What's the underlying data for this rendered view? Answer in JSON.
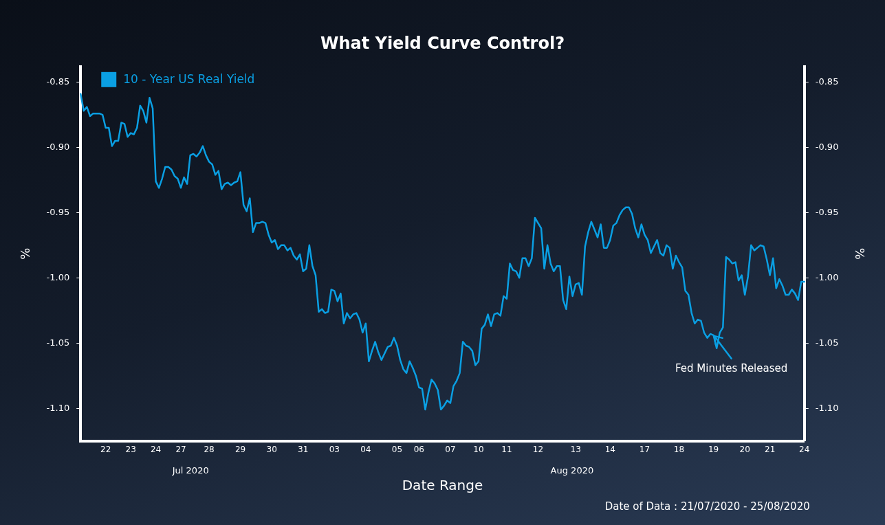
{
  "chart_data": {
    "type": "line",
    "title": "What Yield Curve Control?",
    "xlabel": "Date Range",
    "ylabel": "%",
    "y2label": "%",
    "categories": [
      null,
      null,
      null,
      null,
      null,
      null,
      null,
      null,
      "22",
      null,
      null,
      null,
      null,
      null,
      null,
      null,
      "23",
      null,
      null,
      null,
      null,
      null,
      null,
      null,
      "24",
      null,
      null,
      null,
      null,
      null,
      null,
      null,
      "27",
      null,
      null,
      null,
      null,
      null,
      null,
      null,
      null,
      "28",
      null,
      null,
      null,
      null,
      null,
      null,
      null,
      null,
      null,
      "29",
      null,
      null,
      null,
      null,
      null,
      null,
      null,
      null,
      null,
      "30",
      null,
      null,
      null,
      null,
      null,
      null,
      null,
      null,
      null,
      "31",
      null,
      null,
      null,
      null,
      null,
      null,
      null,
      null,
      null,
      "03",
      null,
      null,
      null,
      null,
      null,
      null,
      null,
      null,
      null,
      "04",
      null,
      null,
      null,
      null,
      null,
      null,
      null,
      null,
      null,
      "05",
      null,
      null,
      null,
      null,
      null,
      null,
      "06",
      null,
      null,
      null,
      null,
      null,
      null,
      null,
      null,
      null,
      "07",
      null,
      null,
      null,
      null,
      null,
      null,
      null,
      null,
      "10",
      null,
      null,
      null,
      null,
      null,
      null,
      null,
      null,
      "11",
      null,
      null,
      null,
      null,
      null,
      null,
      null,
      null,
      null,
      "12",
      null,
      null,
      null,
      null,
      null,
      null,
      null,
      null,
      null,
      null,
      null,
      "13",
      null,
      null,
      null,
      null,
      null,
      null,
      null,
      null,
      null,
      null,
      "14",
      null,
      null,
      null,
      null,
      null,
      null,
      null,
      null,
      null,
      null,
      "17",
      null,
      null,
      null,
      null,
      null,
      null,
      null,
      null,
      null,
      null,
      "18",
      null,
      null,
      null,
      null,
      null,
      null,
      null,
      null,
      null,
      null,
      "19",
      null,
      null,
      null,
      null,
      null,
      null,
      null,
      null,
      null,
      "20",
      null,
      null,
      null,
      null,
      null,
      null,
      null,
      "21",
      null,
      null,
      null,
      null,
      null,
      null,
      null,
      null,
      null,
      null,
      "24"
    ],
    "series": [
      {
        "name": "10 - Year US Real Yield",
        "color": "#0a9fe3",
        "values": [
          -0.859,
          -0.872,
          -0.869,
          -0.876,
          -0.874,
          -0.874,
          -0.874,
          -0.875,
          -0.885,
          -0.885,
          -0.899,
          -0.895,
          -0.895,
          -0.881,
          -0.882,
          -0.892,
          -0.889,
          -0.89,
          -0.885,
          -0.868,
          -0.872,
          -0.881,
          -0.862,
          -0.87,
          -0.926,
          -0.931,
          -0.924,
          -0.915,
          -0.915,
          -0.917,
          -0.922,
          -0.924,
          -0.931,
          -0.923,
          -0.928,
          -0.906,
          -0.905,
          -0.907,
          -0.904,
          -0.899,
          -0.906,
          -0.911,
          -0.913,
          -0.921,
          -0.918,
          -0.932,
          -0.928,
          -0.927,
          -0.929,
          -0.927,
          -0.926,
          -0.919,
          -0.944,
          -0.949,
          -0.939,
          -0.965,
          -0.958,
          -0.958,
          -0.957,
          -0.958,
          -0.967,
          -0.973,
          -0.971,
          -0.978,
          -0.975,
          -0.975,
          -0.979,
          -0.977,
          -0.983,
          -0.986,
          -0.982,
          -0.995,
          -0.993,
          -0.975,
          -0.991,
          -0.998,
          -1.026,
          -1.024,
          -1.027,
          -1.026,
          -1.009,
          -1.01,
          -1.018,
          -1.012,
          -1.035,
          -1.027,
          -1.031,
          -1.028,
          -1.027,
          -1.032,
          -1.042,
          -1.035,
          -1.064,
          -1.056,
          -1.049,
          -1.057,
          -1.063,
          -1.058,
          -1.053,
          -1.052,
          -1.046,
          -1.052,
          -1.063,
          -1.07,
          -1.073,
          -1.064,
          -1.069,
          -1.075,
          -1.084,
          -1.085,
          -1.101,
          -1.088,
          -1.078,
          -1.081,
          -1.086,
          -1.101,
          -1.098,
          -1.094,
          -1.096,
          -1.083,
          -1.079,
          -1.073,
          -1.049,
          -1.052,
          -1.053,
          -1.056,
          -1.067,
          -1.064,
          -1.039,
          -1.036,
          -1.028,
          -1.037,
          -1.028,
          -1.027,
          -1.029,
          -1.014,
          -1.016,
          -0.989,
          -0.994,
          -0.995,
          -1.0,
          -0.985,
          -0.985,
          -0.991,
          -0.985,
          -0.954,
          -0.958,
          -0.962,
          -0.993,
          -0.975,
          -0.989,
          -0.995,
          -0.991,
          -0.991,
          -1.017,
          -1.024,
          -0.999,
          -1.014,
          -1.005,
          -1.004,
          -1.013,
          -0.976,
          -0.965,
          -0.957,
          -0.963,
          -0.969,
          -0.959,
          -0.977,
          -0.977,
          -0.971,
          -0.96,
          -0.958,
          -0.952,
          -0.948,
          -0.946,
          -0.946,
          -0.951,
          -0.962,
          -0.969,
          -0.959,
          -0.967,
          -0.971,
          -0.981,
          -0.976,
          -0.971,
          -0.981,
          -0.983,
          -0.975,
          -0.977,
          -0.993,
          -0.983,
          -0.988,
          -0.992,
          -1.01,
          -1.013,
          -1.027,
          -1.035,
          -1.032,
          -1.033,
          -1.042,
          -1.046,
          -1.043,
          -1.044,
          -1.054,
          -1.042,
          -1.038,
          -0.984,
          -0.986,
          -0.989,
          -0.988,
          -1.002,
          -0.998,
          -1.013,
          -0.999,
          -0.975,
          -0.979,
          -0.977,
          -0.975,
          -0.976,
          -0.986,
          -0.998,
          -0.985,
          -1.008,
          -1.001,
          -1.006,
          -1.013,
          -1.013,
          -1.009,
          -1.012,
          -1.017,
          -1.003,
          -1.003
        ]
      }
    ],
    "ylim": [
      -1.125,
      -0.838
    ],
    "yticks": [
      -0.85,
      {
        "value": -0.9,
        "label": "-0.90"
      },
      -0.95,
      {
        "value": -1.0,
        "label": "-1.00"
      },
      -1.05,
      {
        "value": -1.1,
        "label": "-1.10"
      }
    ],
    "y2lim": [
      -1.125,
      -0.838
    ],
    "y2ticks": [
      -0.85,
      {
        "value": -0.9,
        "label": "-0.90"
      },
      -0.95,
      {
        "value": -1.0,
        "label": "-1.00"
      },
      -1.05,
      {
        "value": -1.1,
        "label": "-1.10"
      }
    ],
    "annotations": [
      {
        "text": "Fed Minutes Released",
        "x": "19",
        "y": -1.044
      },
      "Jul 2020",
      "Aug 2020",
      "Date of Data : 21/07/2020 - 25/08/2020"
    ],
    "legend": "top left",
    "grid": false,
    "marker": "none",
    "line_style": "solid"
  }
}
